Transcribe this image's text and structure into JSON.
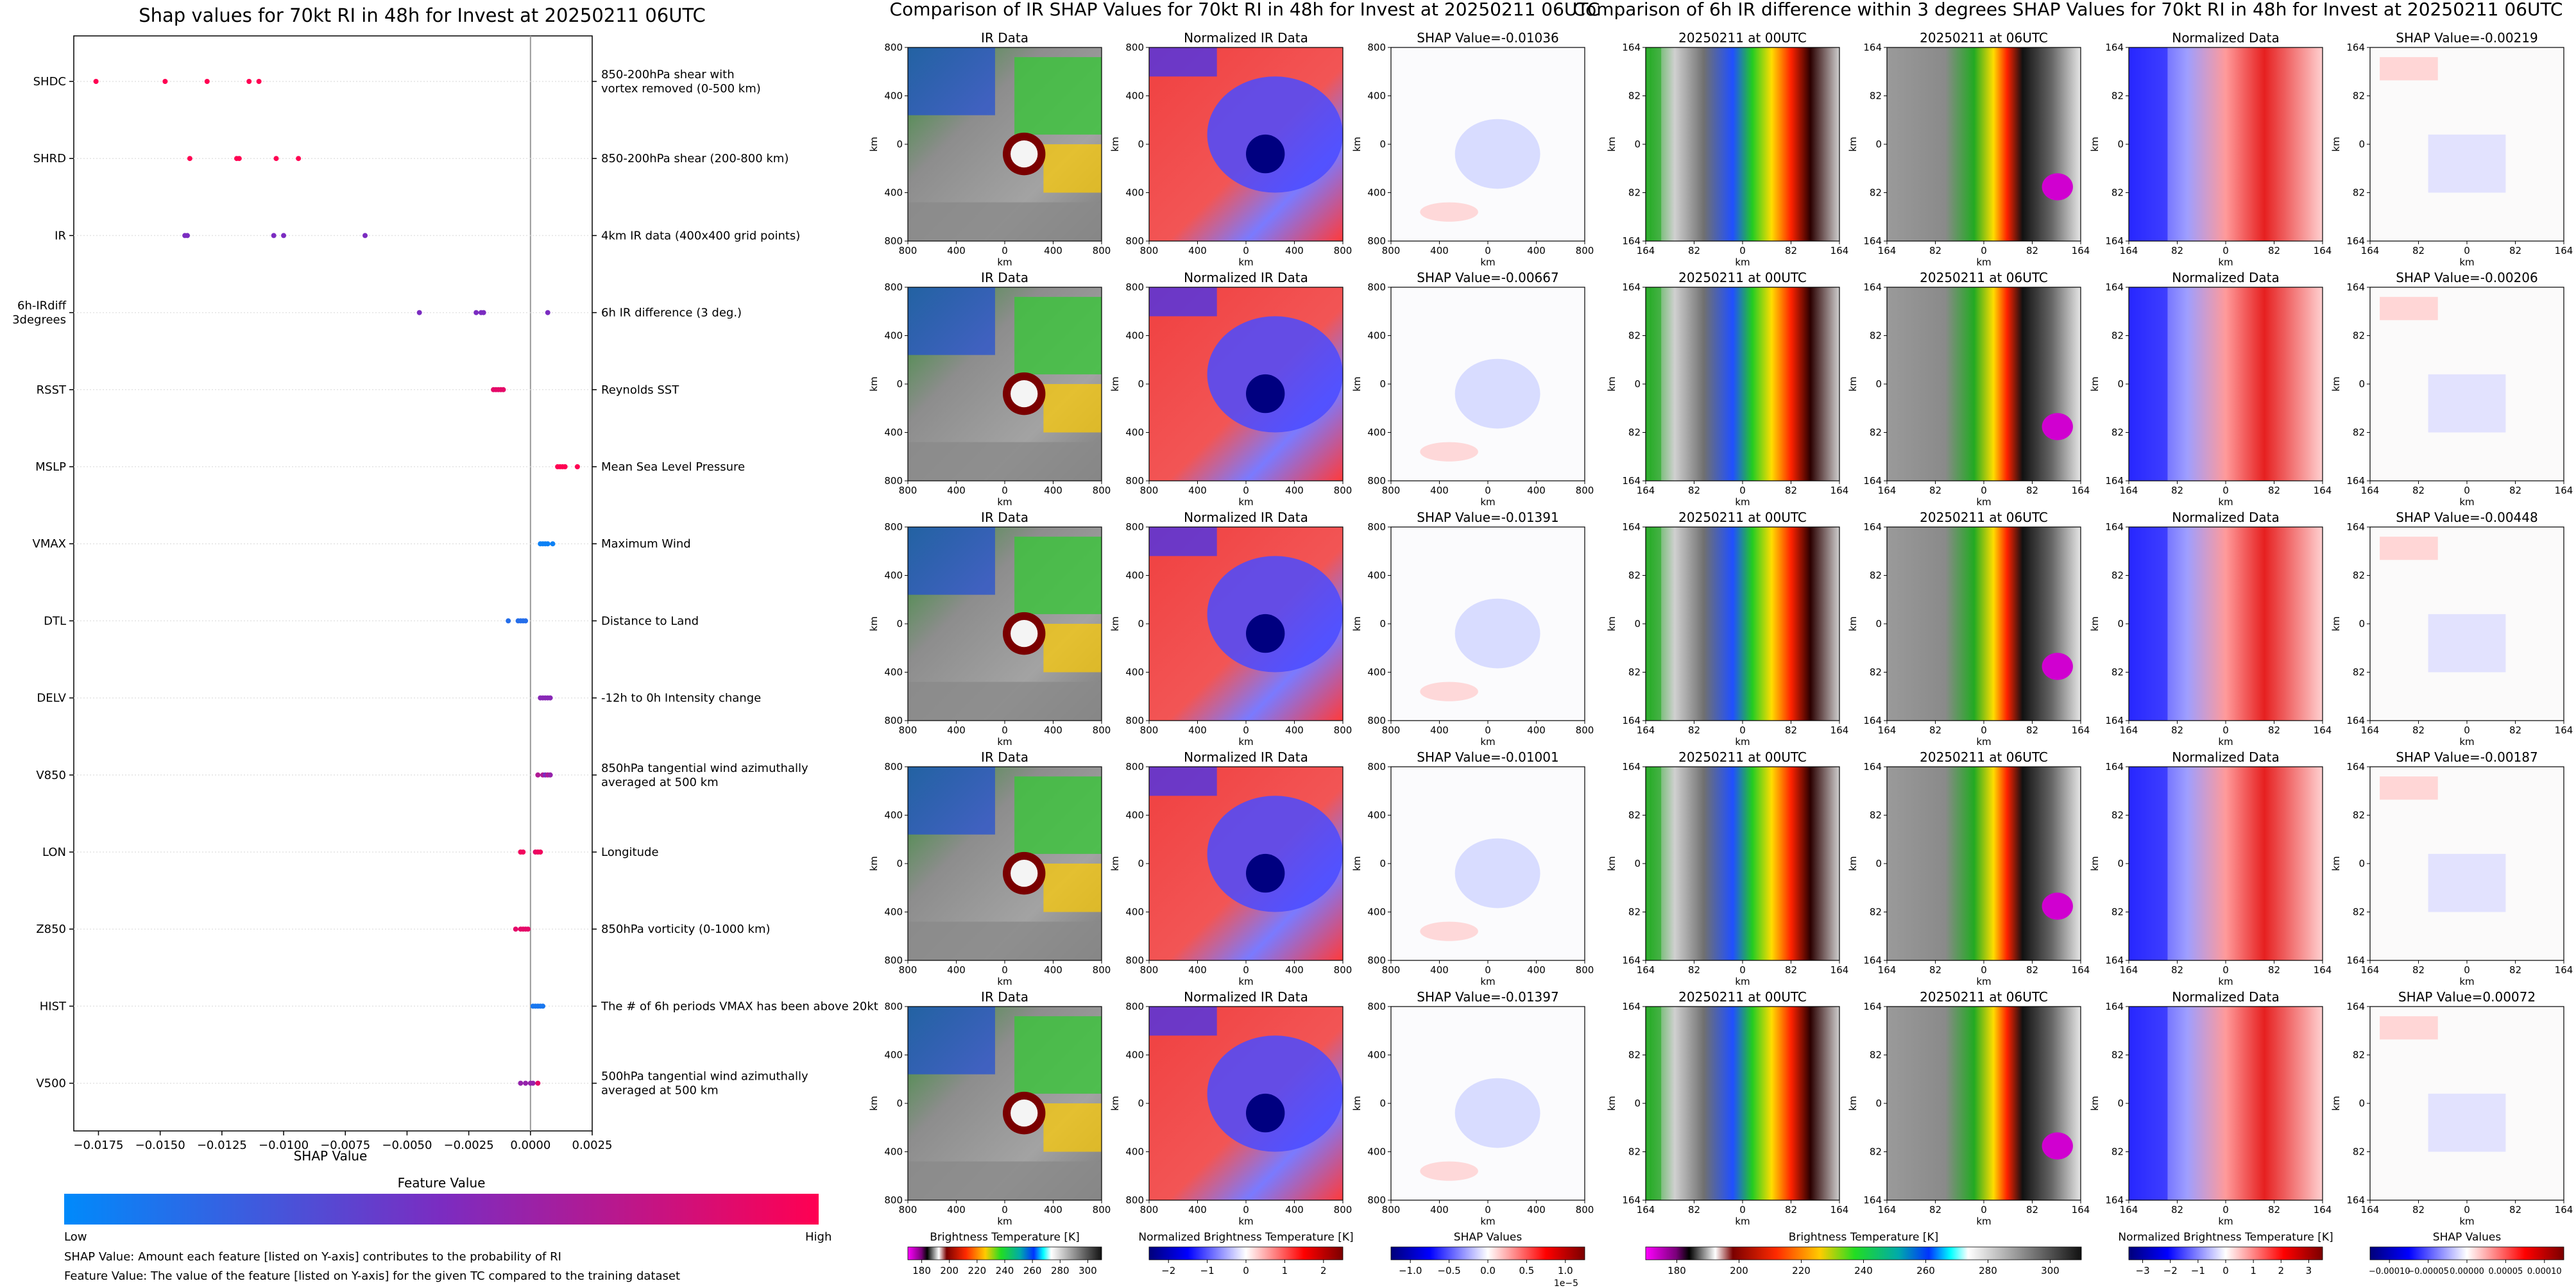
{
  "colors": {
    "shap_low": "#008afb",
    "shap_mid": "#7b2cc1",
    "shap_high": "#ff0052",
    "ir_cloud": "#9a9a9a",
    "ir_warm": "#1f4fd6",
    "norm_cold": "#1a1aff",
    "norm_warm": "#ee2a2a"
  },
  "left_panel": {
    "title": "Shap values for 70kt RI in 48h for Invest at 20250211 06UTC",
    "x_axis_label": "SHAP Value",
    "colorbar_title": "Feature Value",
    "colorbar_low": "Low",
    "colorbar_high": "High",
    "footnote_1": "SHAP Value: Amount each feature [listed on Y-axis] contributes to the probability of RI",
    "footnote_2": "Feature Value: The value of the feature [listed on Y-axis] for the given TC compared to the training dataset"
  },
  "mid_panel": {
    "title": "Comparison of IR SHAP Values for 70kt RI in 48h for Invest at 20250211 06UTC",
    "col_titles": [
      "IR Data",
      "Normalized IR Data"
    ],
    "shap_titles": [
      "SHAP Value=-0.01036",
      "SHAP Value=-0.00667",
      "SHAP Value=-0.01391",
      "SHAP Value=-0.01001",
      "SHAP Value=-0.01397"
    ],
    "axis_unit": "km",
    "ticks": [
      "800",
      "400",
      "0",
      "400",
      "800"
    ],
    "cbar_labels": [
      "Brightness Temperature [K]",
      "Normalized Brightness Temperature [K]",
      "SHAP Values"
    ],
    "cbar1_ticks": [
      "180",
      "200",
      "220",
      "240",
      "260",
      "280",
      "300"
    ],
    "cbar2_ticks": [
      "−2",
      "−1",
      "0",
      "1",
      "2"
    ],
    "cbar3_ticks": [
      "−1.0",
      "−0.5",
      "0.0",
      "0.5",
      "1.0"
    ],
    "cbar3_exponent": "1e−5"
  },
  "right_panel": {
    "title": "Comparison of 6h IR difference within 3 degrees SHAP Values for 70kt RI in 48h for Invest at 20250211 06UTC",
    "col_titles": [
      "20250211 at 00UTC",
      "20250211 at 06UTC",
      "Normalized Data"
    ],
    "shap_titles": [
      "SHAP Value=-0.00219",
      "SHAP Value=-0.00206",
      "SHAP Value=-0.00448",
      "SHAP Value=-0.00187",
      "SHAP Value=0.00072"
    ],
    "axis_unit": "km",
    "ticks": [
      "164",
      "82",
      "0",
      "82",
      "164"
    ],
    "cbar_labels": [
      "Brightness Temperature [K]",
      "Normalized Brightness Temperature [K]",
      "SHAP Values"
    ],
    "cbar1_ticks": [
      "180",
      "200",
      "220",
      "240",
      "260",
      "280",
      "300"
    ],
    "cbar2_ticks": [
      "−3",
      "−2",
      "−1",
      "0",
      "1",
      "2",
      "3"
    ],
    "cbar3_ticks": [
      "−0.00010",
      "−0.00005",
      "0.00000",
      "0.00005",
      "0.00010"
    ]
  },
  "chart_data": [
    {
      "type": "scatter",
      "title": "Shap values for 70kt RI in 48h for Invest at 20250211 06UTC",
      "xlabel": "SHAP Value",
      "xlim": [
        -0.0185,
        0.0025
      ],
      "x_ticks": [
        "−0.0175",
        "−0.0150",
        "−0.0125",
        "−0.0100",
        "−0.0075",
        "−0.0050",
        "−0.0025",
        "0.0000",
        "0.0025"
      ],
      "x_tick_values": [
        -0.0175,
        -0.015,
        -0.0125,
        -0.01,
        -0.0075,
        -0.005,
        -0.0025,
        0,
        0.0025
      ],
      "features": [
        {
          "name": "SHDC",
          "description": "850-200hPa shear with\nvortex removed (0-500 km)",
          "points": [
            [
              -0.0176,
              1
            ],
            [
              -0.0148,
              1
            ],
            [
              -0.0131,
              1
            ],
            [
              -0.0114,
              1
            ],
            [
              -0.011,
              1
            ]
          ]
        },
        {
          "name": "SHRD",
          "description": "850-200hPa shear (200-800 km)",
          "points": [
            [
              -0.0138,
              1
            ],
            [
              -0.0119,
              1
            ],
            [
              -0.0118,
              1
            ],
            [
              -0.0103,
              1
            ],
            [
              -0.0094,
              1
            ]
          ]
        },
        {
          "name": "IR",
          "description": "4km IR data (400x400 grid points)",
          "points": [
            [
              -0.014,
              0.5
            ],
            [
              -0.0139,
              0.5
            ],
            [
              -0.0104,
              0.5
            ],
            [
              -0.01,
              0.5
            ],
            [
              -0.0067,
              0.5
            ]
          ]
        },
        {
          "name": "6h-IRdiff\n3degrees",
          "description": "6h IR difference (3 deg.)",
          "points": [
            [
              -0.0045,
              0.5
            ],
            [
              -0.0022,
              0.5
            ],
            [
              -0.002,
              0.5
            ],
            [
              -0.0019,
              0.5
            ],
            [
              0.0007,
              0.5
            ]
          ]
        },
        {
          "name": "RSST",
          "description": "Reynolds SST",
          "points": [
            [
              -0.0015,
              0.9
            ],
            [
              -0.0014,
              0.9
            ],
            [
              -0.0013,
              0.9
            ],
            [
              -0.0012,
              0.9
            ],
            [
              -0.0011,
              0.9
            ]
          ]
        },
        {
          "name": "MSLP",
          "description": "Mean Sea Level Pressure",
          "points": [
            [
              0.0011,
              1
            ],
            [
              0.0012,
              1
            ],
            [
              0.0013,
              1
            ],
            [
              0.0014,
              1
            ],
            [
              0.0019,
              1
            ]
          ]
        },
        {
          "name": "VMAX",
          "description": "Maximum Wind",
          "points": [
            [
              0.0004,
              0.05
            ],
            [
              0.0005,
              0.05
            ],
            [
              0.0006,
              0.05
            ],
            [
              0.0007,
              0.05
            ],
            [
              0.0009,
              0.05
            ]
          ]
        },
        {
          "name": "DTL",
          "description": "Distance to Land",
          "points": [
            [
              -0.0009,
              0.15
            ],
            [
              -0.0005,
              0.15
            ],
            [
              -0.0004,
              0.15
            ],
            [
              -0.0003,
              0.15
            ],
            [
              -0.0002,
              0.15
            ]
          ]
        },
        {
          "name": "DELV",
          "description": "-12h to 0h Intensity change",
          "points": [
            [
              0.0004,
              0.55
            ],
            [
              0.0005,
              0.55
            ],
            [
              0.0006,
              0.55
            ],
            [
              0.0007,
              0.55
            ],
            [
              0.0008,
              0.55
            ]
          ]
        },
        {
          "name": "V850",
          "description": "850hPa tangential wind azimuthally\naveraged at 500 km",
          "points": [
            [
              0.0003,
              0.7
            ],
            [
              0.0005,
              0.7
            ],
            [
              0.0006,
              0.5
            ],
            [
              0.0007,
              0.7
            ],
            [
              0.0008,
              0.6
            ]
          ]
        },
        {
          "name": "LON",
          "description": "Longitude",
          "points": [
            [
              -0.0004,
              0.95
            ],
            [
              -0.0003,
              0.95
            ],
            [
              0.0002,
              0.9
            ],
            [
              0.0003,
              0.95
            ],
            [
              0.0004,
              0.95
            ]
          ]
        },
        {
          "name": "Z850",
          "description": "850hPa vorticity (0-1000 km)",
          "points": [
            [
              -0.0006,
              0.9
            ],
            [
              -0.0004,
              0.9
            ],
            [
              -0.0003,
              0.9
            ],
            [
              -0.0002,
              0.9
            ],
            [
              -0.0001,
              0.9
            ]
          ]
        },
        {
          "name": "HIST",
          "description": "The # of 6h periods VMAX has been above 20kt",
          "points": [
            [
              0.0001,
              0.1
            ],
            [
              0.0002,
              0.1
            ],
            [
              0.0003,
              0.1
            ],
            [
              0.0004,
              0.1
            ],
            [
              0.0005,
              0.1
            ]
          ]
        },
        {
          "name": "V500",
          "description": "500hPa tangential wind azimuthally\naveraged at 500 km",
          "points": [
            [
              -0.0004,
              0.6
            ],
            [
              -0.0002,
              0.6
            ],
            [
              0.0,
              0.6
            ],
            [
              0.0001,
              0.6
            ],
            [
              0.0003,
              0.9
            ]
          ]
        }
      ]
    },
    {
      "type": "heatmap",
      "title": "Comparison of IR SHAP Values for 70kt RI in 48h for Invest at 20250211 06UTC",
      "columns": [
        "IR Data",
        "Normalized IR Data",
        "SHAP Value"
      ],
      "shap_values": [
        -0.01036,
        -0.00667,
        -0.01391,
        -0.01001,
        -0.01397
      ],
      "xlim_km": [
        -800,
        800
      ],
      "ylim_km": [
        -800,
        800
      ]
    },
    {
      "type": "heatmap",
      "title": "Comparison of 6h IR difference within 3 degrees SHAP Values for 70kt RI in 48h for Invest at 20250211 06UTC",
      "columns": [
        "20250211 at 00UTC",
        "20250211 at 06UTC",
        "Normalized Data",
        "SHAP Value"
      ],
      "shap_values": [
        -0.00219,
        -0.00206,
        -0.00448,
        -0.00187,
        0.00072
      ],
      "xlim_km": [
        -164,
        164
      ],
      "ylim_km": [
        -164,
        164
      ]
    }
  ]
}
